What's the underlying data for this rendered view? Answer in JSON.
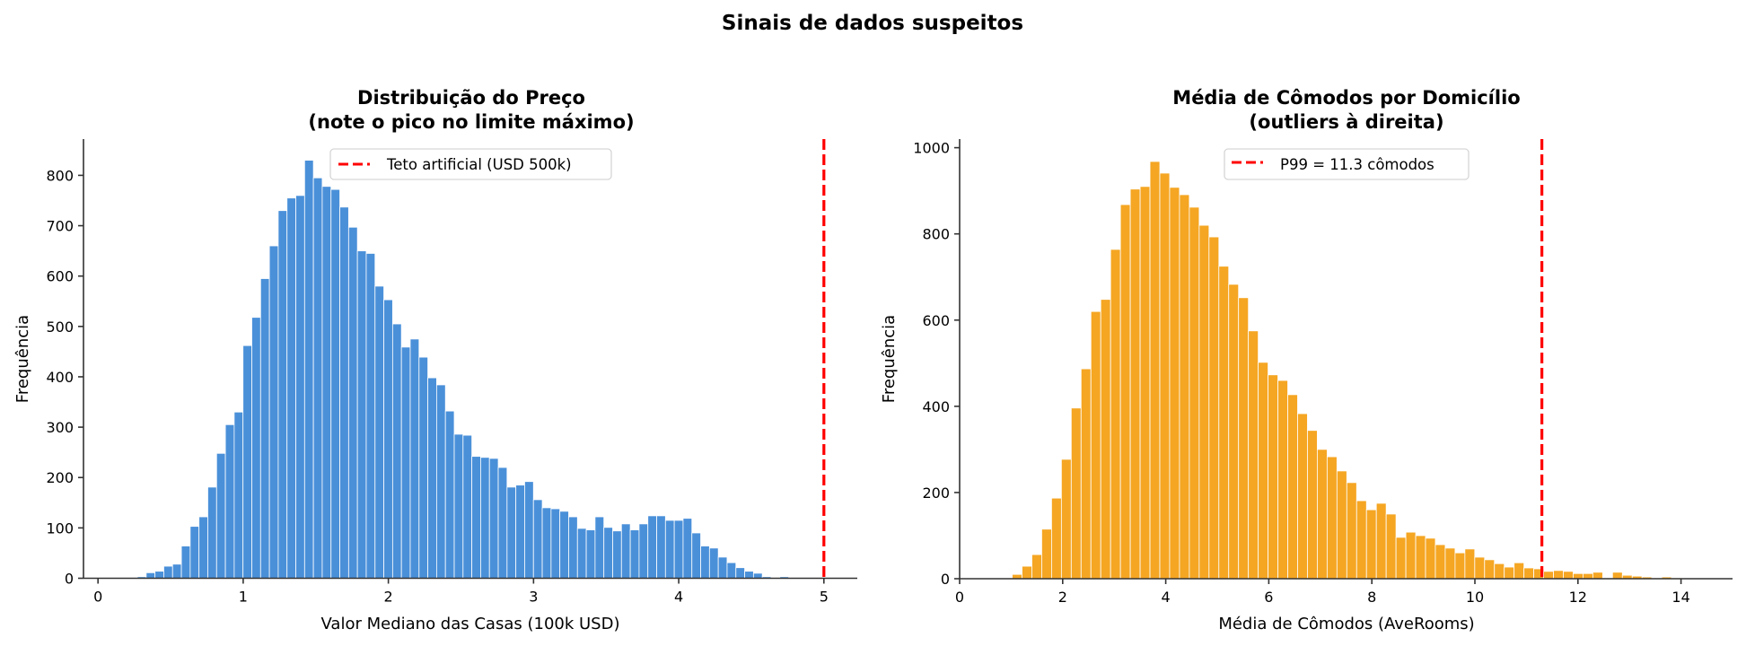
{
  "suptitle": "Sinais de dados suspeitos",
  "chart_data": [
    {
      "type": "bar",
      "subtype": "histogram",
      "title_line1": "Distribuição do Preço",
      "title_line2": "(note o pico no limite máximo)",
      "xlabel": "Valor Mediano das Casas (100k USD)",
      "ylabel": "Frequência",
      "xlim": [
        -0.1,
        5.23
      ],
      "ylim": [
        0,
        872
      ],
      "xticks": [
        "0",
        "1",
        "2",
        "3",
        "4",
        "5"
      ],
      "yticks": [
        "0",
        "100",
        "200",
        "300",
        "400",
        "500",
        "600",
        "700",
        "800"
      ],
      "grid": false,
      "bar_color": "#4a90d9",
      "bin_start": 0.15,
      "bin_width": 0.060625,
      "values": [
        1,
        0,
        3,
        11,
        14,
        24,
        28,
        64,
        103,
        122,
        181,
        248,
        305,
        330,
        462,
        518,
        595,
        660,
        730,
        755,
        760,
        830,
        795,
        778,
        772,
        737,
        697,
        650,
        645,
        580,
        553,
        505,
        459,
        475,
        439,
        398,
        384,
        332,
        286,
        284,
        242,
        240,
        238,
        220,
        181,
        185,
        192,
        156,
        140,
        138,
        133,
        122,
        99,
        96,
        122,
        101,
        94,
        108,
        96,
        108,
        124,
        124,
        115,
        115,
        119,
        90,
        64,
        60,
        42,
        31,
        21,
        14,
        10,
        3,
        1,
        3,
        0,
        0,
        0,
        0
      ],
      "reference_line": {
        "x": 5.0,
        "color": "#ff0000",
        "style": "dashed",
        "label": "Teto artificial (USD 500k)"
      },
      "legend_position": "upper-center"
    },
    {
      "type": "bar",
      "subtype": "histogram",
      "title_line1": "Média de Cômodos por Domicílio",
      "title_line2": "(outliers à direita)",
      "xlabel": "Média de Cômodos (AveRooms)",
      "ylabel": "Frequência",
      "xlim": [
        0,
        15
      ],
      "ylim": [
        0,
        1020
      ],
      "xticks": [
        "0",
        "2",
        "4",
        "6",
        "8",
        "10",
        "12",
        "14"
      ],
      "yticks": [
        "0",
        "200",
        "400",
        "600",
        "800",
        "1000"
      ],
      "grid": false,
      "bar_color": "#f5a623",
      "bin_start": 1.02,
      "bin_width": 0.191,
      "values": [
        10,
        29,
        56,
        115,
        187,
        277,
        396,
        487,
        620,
        648,
        764,
        868,
        904,
        910,
        968,
        941,
        908,
        891,
        862,
        820,
        793,
        725,
        683,
        652,
        575,
        502,
        473,
        460,
        427,
        383,
        344,
        300,
        283,
        250,
        223,
        181,
        160,
        175,
        150,
        96,
        108,
        100,
        94,
        79,
        71,
        60,
        69,
        50,
        44,
        35,
        27,
        37,
        25,
        23,
        17,
        19,
        17,
        12,
        12,
        15,
        2,
        15,
        8,
        6,
        4,
        2,
        4,
        2,
        0,
        0,
        1,
        1,
        1
      ],
      "reference_line": {
        "x": 11.3,
        "color": "#ff0000",
        "style": "dashed",
        "label": "P99 = 11.3 cômodos"
      },
      "legend_position": "upper-center"
    }
  ]
}
